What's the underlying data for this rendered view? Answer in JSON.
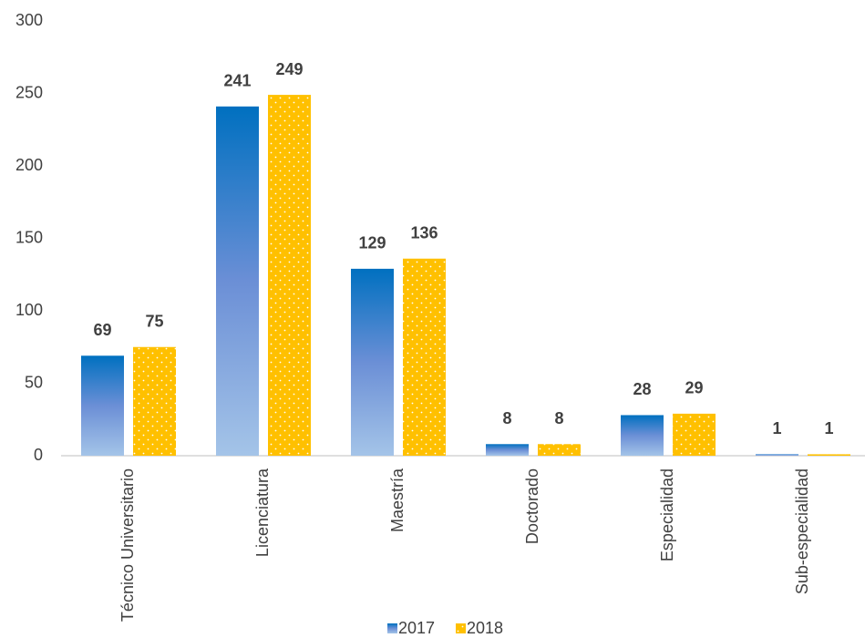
{
  "chart_data": {
    "type": "bar",
    "categories": [
      "Técnico Universitario",
      "Licenciatura",
      "Maestría",
      "Doctorado",
      "Especialidad",
      "Sub-especialidad"
    ],
    "series": [
      {
        "name": "2017",
        "color": "#0070c0",
        "values": [
          69,
          241,
          129,
          8,
          28,
          1
        ]
      },
      {
        "name": "2018",
        "color": "#ffc000",
        "values": [
          75,
          249,
          136,
          8,
          29,
          1
        ]
      }
    ],
    "ylim": [
      0,
      300
    ],
    "yticks": [
      0,
      50,
      100,
      150,
      200,
      250,
      300
    ],
    "grid": false,
    "legend": "bottom"
  }
}
